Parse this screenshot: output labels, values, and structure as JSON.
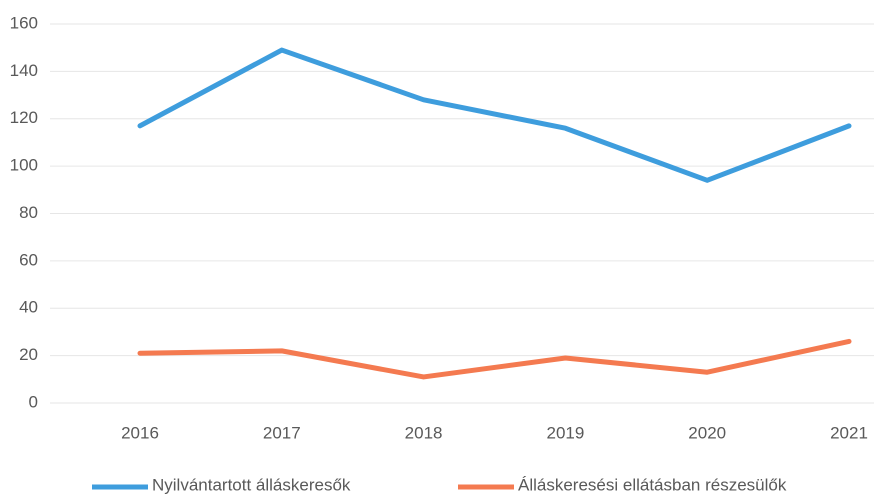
{
  "chart_data": {
    "type": "line",
    "categories": [
      "2016",
      "2017",
      "2018",
      "2019",
      "2020",
      "2021"
    ],
    "series": [
      {
        "name": "Nyilvántartott álláskeresők",
        "color": "#3e9ddd",
        "values": [
          117,
          149,
          128,
          116,
          94,
          117
        ]
      },
      {
        "name": "Álláskeresési ellátásban részesülők",
        "color": "#f47a50",
        "values": [
          21,
          22,
          11,
          19,
          13,
          26
        ]
      }
    ],
    "ylim": [
      0,
      160
    ],
    "yticks": [
      0,
      20,
      40,
      60,
      80,
      100,
      120,
      140,
      160
    ],
    "grid": true,
    "legend": "bottom"
  }
}
